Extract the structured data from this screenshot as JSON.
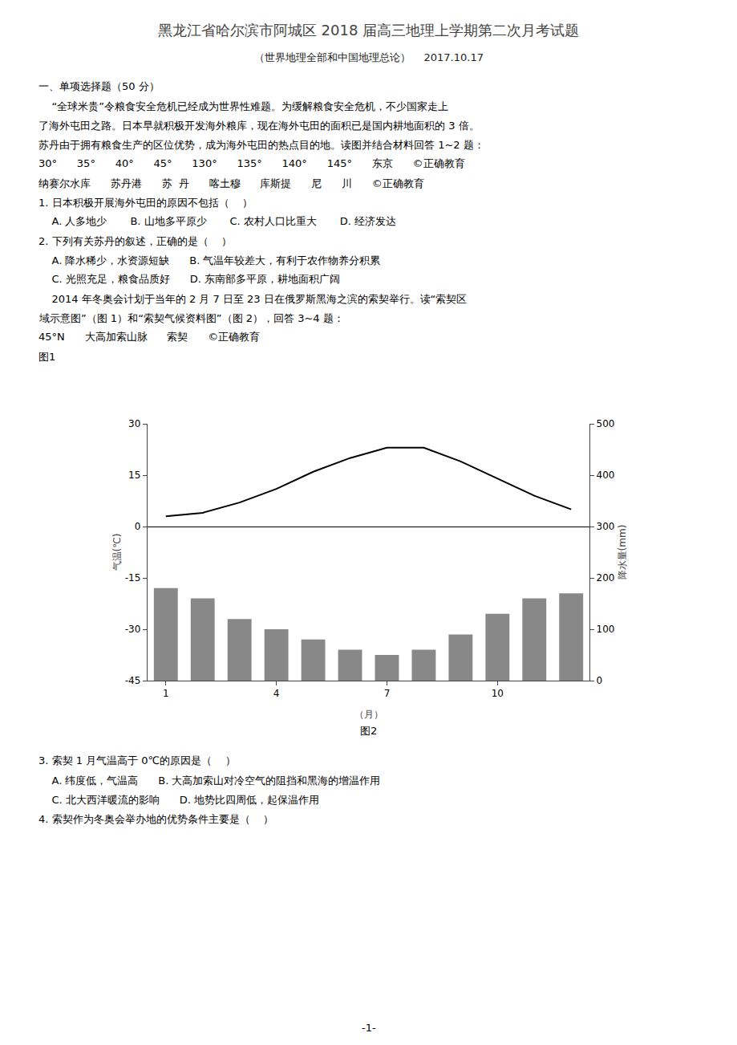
{
  "title": "黑龙江省哈尔滨市阿城区 2018 届高三地理上学期第二次月考试题",
  "subtitle": "（世界地理全部和中国地理总论）    2017.10.17",
  "annotations": {
    "above": [
      "一、单项选择题（50 分）",
      "    “全球米贵”令粮食安全危机已经成为世界性难题。为缓解粮食安全危机，不少国家走上",
      "了海外屯田之路。日本早就积极开发海外粮库，现在海外屯田的面积已是国内耕地面积的 3 倍。",
      "苏丹由于拥有粮食生产的区位优势，成为海外屯田的热点目的地。读图并结合材料回答 1~2 题：",
      [
        "30°",
        "35°",
        "40°",
        "45°",
        "130°",
        "135°",
        "140°",
        "145°",
        "东京",
        "©正确教育"
      ],
      [
        "纳赛尔水库",
        "苏丹港",
        "苏  丹",
        "喀土穆",
        "库斯提",
        "尼",
        "川",
        "©正确教育"
      ],
      "1. 日本积极开展海外屯田的原因不包括（    ）",
      "    A. 人多地少       B. 山地多平原少       C. 农村人口比重大       D. 经济发达",
      "2. 下列有关苏丹的叙述，正确的是（    ）",
      [
        "    A. 降水稀少，水资源短缺",
        "B. 气温年较差大，有利于农作物养分积累"
      ],
      [
        "    C. 光照充足，粮食品质好",
        "D. 东南部多平原，耕地面积广阔"
      ],
      "    2014 年冬奥会计划于当年的 2 月 7 日至 23 日在俄罗斯黑海之滨的索契举行。读“索契区",
      "域示意图”（图 1）和“索契气候资料图”（图 2），回答 3~4 题：",
      [
        "45°N",
        "大高加索山脉",
        "索契",
        "©正确教育"
      ],
      "图1"
    ],
    "below": [
      "3. 索契 1 月气温高于 0℃的原因是（    ）",
      [
        "    A. 纬度低，气温高",
        "B. 大高加索山对冷空气的阻挡和黑海的增温作用"
      ],
      [
        "    C. 北大西洋暖流的影响",
        "D. 地势比四周低，起保温作用"
      ],
      "4. 索契作为冬奥会举办地的优势条件主要是（    ）",
      "-1-"
    ]
  },
  "chart_data": {
    "type": "bar",
    "title": "图2",
    "x": [
      1,
      2,
      3,
      4,
      5,
      6,
      7,
      8,
      9,
      10,
      11,
      12
    ],
    "xlabel": "（月）",
    "ylabel": "气温(℃)",
    "y2label": "降水量(mm)",
    "xlim": [
      0.5,
      12.5
    ],
    "xticks": [
      1,
      4,
      7,
      10
    ],
    "ylim": [
      -45,
      30
    ],
    "yticks": [
      -45,
      -30,
      -15,
      0,
      15,
      30
    ],
    "y2lim": [
      0,
      500
    ],
    "y2ticks": [
      0,
      100,
      200,
      300,
      400,
      500
    ],
    "grid": false,
    "series": [
      {
        "type": "bar",
        "axis": "y2",
        "color": "#888888",
        "values": [
          180,
          160,
          120,
          100,
          80,
          60,
          50,
          60,
          90,
          130,
          160,
          170
        ]
      },
      {
        "type": "line",
        "axis": "y",
        "color": "#000000",
        "values": [
          3,
          4,
          7,
          11,
          16,
          20,
          23,
          23,
          19,
          14,
          9,
          5
        ]
      }
    ]
  }
}
